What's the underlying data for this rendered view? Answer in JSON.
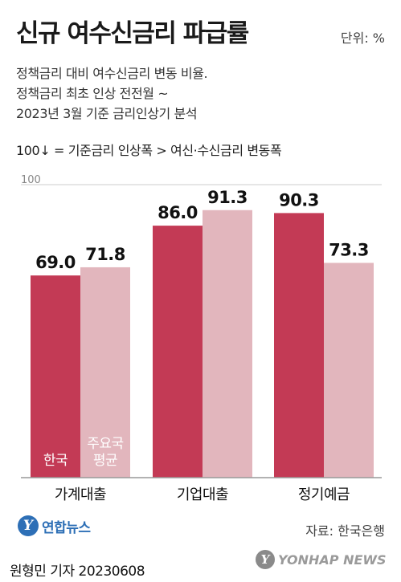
{
  "header": {
    "title": "신규 여수신금리 파급률",
    "unit": "단위: %",
    "subtitle_lines": [
      "정책금리 대비 여수신금리 변동 비율.",
      "정책금리 최초 인상 전전월 ~",
      "2023년 3월 기준 금리인상기 분석"
    ],
    "note": "100↓ = 기준금리 인상폭 > 여신·수신금리 변동폭"
  },
  "colors": {
    "korea": "#c33a55",
    "major_avg": "#e2b6bd",
    "axis": "#999999",
    "gridline": "#cccccc"
  },
  "chart_data": {
    "type": "bar",
    "categories": [
      "가계대출",
      "기업대출",
      "정기예금"
    ],
    "series": [
      {
        "name": "한국",
        "values": [
          69.0,
          86.0,
          90.3
        ]
      },
      {
        "name": "주요국 평균",
        "values": [
          71.8,
          91.3,
          73.3
        ]
      }
    ],
    "value_labels": [
      [
        "69.0",
        "86.0",
        "90.3"
      ],
      [
        "71.8",
        "91.3",
        "73.3"
      ]
    ],
    "series_labels_in_bar": [
      [
        "한국"
      ],
      [
        "주요국",
        "평균"
      ]
    ],
    "reference_line": {
      "value": 100,
      "label": "100"
    },
    "ylim": [
      0,
      100
    ],
    "xlabel": "",
    "ylabel": "",
    "grid": false
  },
  "footer": {
    "source": "자료: 한국은행",
    "logo_left_text": "연합뉴스",
    "logo_left_icon": "yonhap-logo-icon",
    "logo_right_text": "YONHAP NEWS",
    "logo_right_icon": "yonhap-logo-icon",
    "reporter": "원형민 기자  20230608"
  }
}
